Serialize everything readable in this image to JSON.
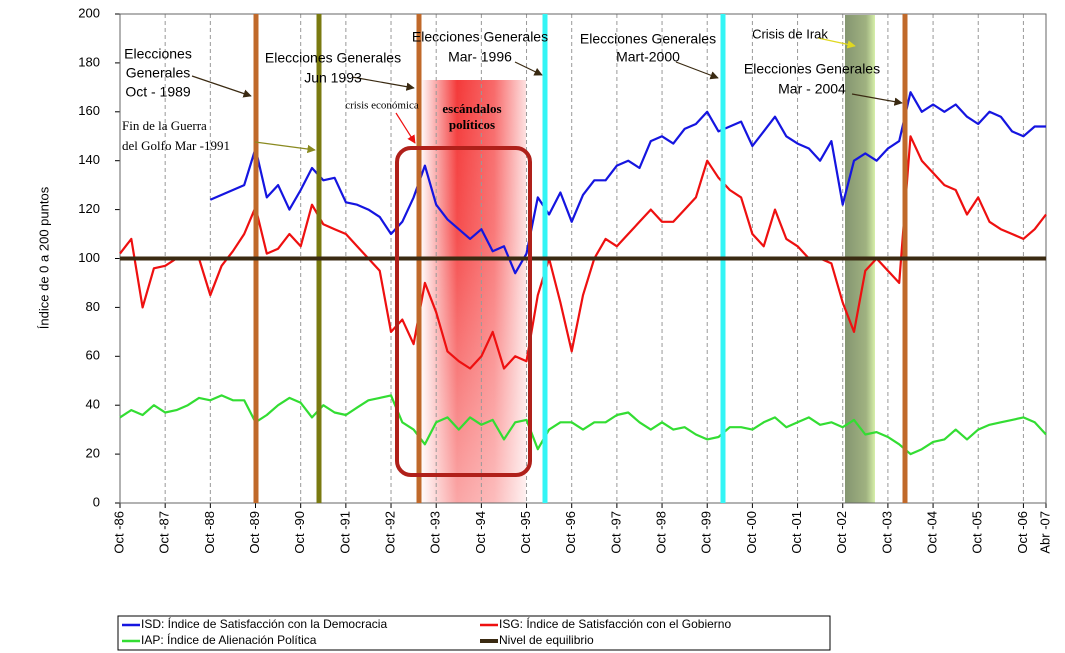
{
  "chart_data": {
    "type": "line",
    "y_label": "Índice de 0 a 200 puntos",
    "ylim": [
      0,
      200
    ],
    "yticks": [
      0,
      20,
      40,
      60,
      80,
      100,
      120,
      140,
      160,
      180,
      200
    ],
    "grid": true,
    "legend": "bottom",
    "categories": [
      "Oct -86",
      null,
      null,
      null,
      "Oct -87",
      null,
      null,
      null,
      "Oct -88",
      null,
      null,
      null,
      "Oct -89",
      null,
      null,
      null,
      "Oct -90",
      null,
      null,
      null,
      "Oct -91",
      null,
      null,
      null,
      "Oct -92",
      null,
      null,
      null,
      "Oct -93",
      null,
      null,
      null,
      "Oct -94",
      null,
      null,
      null,
      "Oct -95",
      null,
      null,
      null,
      "Oct -96",
      null,
      null,
      null,
      "Oct -97",
      null,
      null,
      null,
      "Oct -98",
      null,
      null,
      null,
      "Oct -99",
      null,
      null,
      null,
      "Oct -00",
      null,
      null,
      null,
      "Oct -01",
      null,
      null,
      null,
      "Oct -02",
      null,
      null,
      null,
      "Oct -03",
      null,
      null,
      null,
      "Oct -04",
      null,
      null,
      null,
      "Oct -05",
      null,
      null,
      null,
      "Oct -06",
      null,
      "Abr -07"
    ],
    "series": [
      {
        "name": "ISD: Índice de Satisfacción con la Democracia",
        "color": "#1515e0",
        "values": [
          null,
          null,
          null,
          null,
          null,
          null,
          null,
          null,
          124,
          126,
          128,
          130,
          145,
          125,
          130,
          120,
          128,
          137,
          132,
          133,
          123,
          122,
          120,
          117,
          110,
          115,
          125,
          138,
          122,
          116,
          112,
          108,
          112,
          103,
          105,
          94,
          102,
          125,
          118,
          127,
          115,
          126,
          132,
          132,
          138,
          140,
          137,
          148,
          150,
          147,
          153,
          155,
          160,
          152,
          154,
          156,
          146,
          152,
          158,
          150,
          147,
          145,
          140,
          148,
          122,
          140,
          143,
          140,
          145,
          148,
          168,
          160,
          163,
          160,
          163,
          158,
          155,
          160,
          158,
          152,
          150,
          154,
          154
        ]
      },
      {
        "name": "ISG: Índice de Satisfacción con el Gobierno",
        "color": "#ee1010",
        "values": [
          102,
          108,
          80,
          96,
          97,
          100,
          100,
          100,
          85,
          97,
          103,
          110,
          121,
          102,
          104,
          110,
          105,
          122,
          114,
          112,
          110,
          105,
          100,
          95,
          70,
          75,
          65,
          90,
          78,
          62,
          58,
          55,
          60,
          70,
          55,
          60,
          58,
          85,
          100,
          82,
          62,
          85,
          100,
          108,
          105,
          110,
          115,
          120,
          115,
          115,
          120,
          125,
          140,
          133,
          128,
          125,
          110,
          105,
          120,
          108,
          105,
          100,
          100,
          98,
          82,
          70,
          95,
          100,
          95,
          90,
          150,
          140,
          135,
          130,
          128,
          118,
          125,
          115,
          112,
          110,
          108,
          112,
          118
        ]
      },
      {
        "name": "IAP: Índice de Alienación Política",
        "color": "#33dd33",
        "values": [
          35,
          38,
          36,
          40,
          37,
          38,
          40,
          43,
          42,
          44,
          42,
          42,
          33,
          36,
          40,
          43,
          41,
          35,
          40,
          37,
          36,
          39,
          42,
          43,
          44,
          33,
          30,
          24,
          33,
          35,
          30,
          35,
          32,
          34,
          26,
          33,
          34,
          22,
          30,
          33,
          33,
          30,
          33,
          33,
          36,
          37,
          33,
          30,
          33,
          30,
          31,
          28,
          26,
          27,
          31,
          31,
          30,
          33,
          35,
          31,
          33,
          35,
          32,
          33,
          31,
          34,
          28,
          29,
          27,
          24,
          20,
          22,
          25,
          26,
          30,
          26,
          30,
          32,
          33,
          34,
          35,
          33,
          28
        ]
      }
    ],
    "reference_line": {
      "name": "Nivel de equilibrio",
      "value": 100,
      "color": "#3a2a12"
    },
    "annotations": [
      {
        "lines": [
          "Elecciones",
          "Generales",
          "Oct - 1989"
        ],
        "color": "#3a2a12"
      },
      {
        "lines": [
          "Fin de la Guerra",
          "del Golfo Mar -1991"
        ],
        "color": "#8a8a20"
      },
      {
        "lines": [
          "Elecciones Generales",
          "Jun  1993"
        ],
        "color": "#3a2a12"
      },
      {
        "lines": [
          "Elecciones Generales",
          "Mar- 1996"
        ],
        "color": "#3a2a12"
      },
      {
        "lines": [
          "crisis económica"
        ],
        "color": "#ee1010"
      },
      {
        "lines": [
          "escándalos",
          "políticos"
        ],
        "color": "#ffffff"
      },
      {
        "lines": [
          "Elecciones Generales",
          "Mart-2000"
        ],
        "color": "#3a2a12"
      },
      {
        "lines": [
          "Crisis de Irak"
        ],
        "color": "#e0d820"
      },
      {
        "lines": [
          "Elecciones Generales",
          "Mar - 2004"
        ],
        "color": "#3a2a12"
      }
    ]
  }
}
